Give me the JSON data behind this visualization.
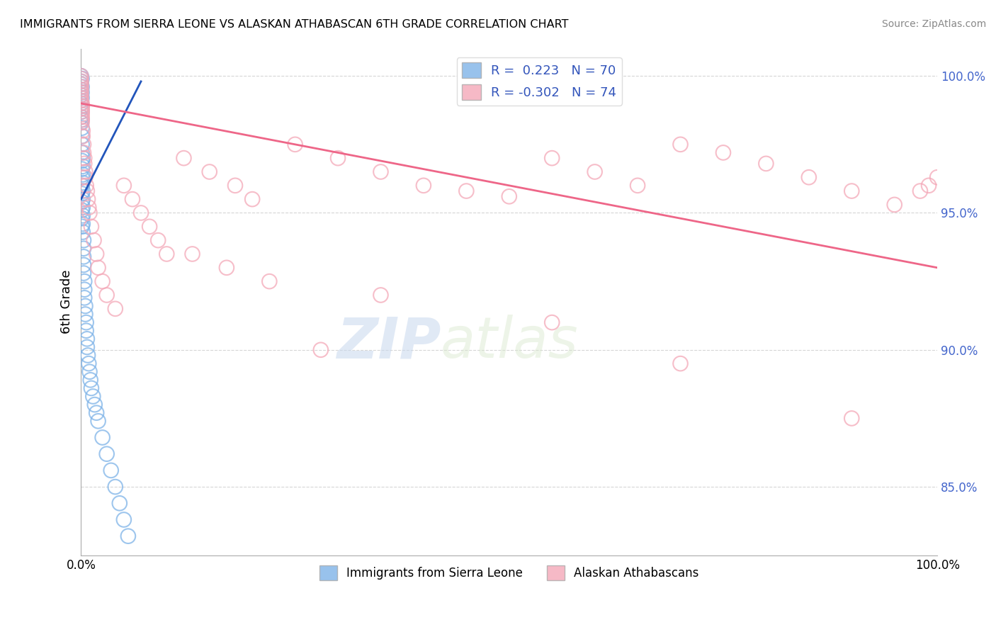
{
  "title": "IMMIGRANTS FROM SIERRA LEONE VS ALASKAN ATHABASCAN 6TH GRADE CORRELATION CHART",
  "source_text": "Source: ZipAtlas.com",
  "ylabel": "6th Grade",
  "xlim": [
    0.0,
    1.0
  ],
  "ylim": [
    0.825,
    1.01
  ],
  "yticks": [
    0.85,
    0.9,
    0.95,
    1.0
  ],
  "ytick_labels": [
    "85.0%",
    "90.0%",
    "95.0%",
    "100.0%"
  ],
  "xticks": [
    0.0,
    1.0
  ],
  "xtick_labels": [
    "0.0%",
    "100.0%"
  ],
  "legend_R_blue": "0.223",
  "legend_N_blue": "70",
  "legend_R_pink": "-0.302",
  "legend_N_pink": "74",
  "blue_color": "#7EB3E8",
  "pink_color": "#F4A8B8",
  "blue_line_color": "#2255BB",
  "pink_line_color": "#EE6688",
  "watermark_zip": "ZIP",
  "watermark_atlas": "atlas",
  "blue_x": [
    0.0,
    0.0,
    0.0,
    0.0,
    0.0,
    0.0,
    0.0,
    0.0,
    0.0,
    0.0,
    0.001,
    0.001,
    0.001,
    0.001,
    0.001,
    0.001,
    0.001,
    0.001,
    0.001,
    0.001,
    0.001,
    0.001,
    0.001,
    0.001,
    0.001,
    0.001,
    0.001,
    0.001,
    0.001,
    0.001,
    0.002,
    0.002,
    0.002,
    0.002,
    0.002,
    0.002,
    0.002,
    0.002,
    0.002,
    0.002,
    0.003,
    0.003,
    0.003,
    0.003,
    0.003,
    0.004,
    0.004,
    0.004,
    0.005,
    0.005,
    0.006,
    0.006,
    0.007,
    0.007,
    0.008,
    0.009,
    0.01,
    0.011,
    0.012,
    0.014,
    0.016,
    0.018,
    0.02,
    0.025,
    0.03,
    0.035,
    0.04,
    0.045,
    0.05,
    0.055
  ],
  "blue_y": [
    0.99,
    0.995,
    0.998,
    1.0,
    0.988,
    0.985,
    0.993,
    0.997,
    0.983,
    0.991,
    0.999,
    0.996,
    0.994,
    0.992,
    0.989,
    0.987,
    0.984,
    0.981,
    0.978,
    0.975,
    0.972,
    0.969,
    0.966,
    0.963,
    0.96,
    0.957,
    0.954,
    0.951,
    0.948,
    0.945,
    0.97,
    0.967,
    0.964,
    0.961,
    0.958,
    0.955,
    0.952,
    0.949,
    0.946,
    0.943,
    0.94,
    0.937,
    0.934,
    0.931,
    0.928,
    0.925,
    0.922,
    0.919,
    0.916,
    0.913,
    0.91,
    0.907,
    0.904,
    0.901,
    0.898,
    0.895,
    0.892,
    0.889,
    0.886,
    0.883,
    0.88,
    0.877,
    0.874,
    0.868,
    0.862,
    0.856,
    0.85,
    0.844,
    0.838,
    0.832
  ],
  "pink_x": [
    0.0,
    0.0,
    0.0,
    0.0,
    0.0,
    0.0,
    0.0,
    0.0,
    0.0,
    0.0,
    0.001,
    0.001,
    0.001,
    0.001,
    0.001,
    0.001,
    0.001,
    0.001,
    0.002,
    0.002,
    0.003,
    0.003,
    0.004,
    0.004,
    0.005,
    0.005,
    0.006,
    0.007,
    0.008,
    0.009,
    0.01,
    0.012,
    0.015,
    0.018,
    0.02,
    0.025,
    0.03,
    0.04,
    0.05,
    0.06,
    0.07,
    0.08,
    0.09,
    0.1,
    0.12,
    0.15,
    0.18,
    0.2,
    0.25,
    0.3,
    0.35,
    0.4,
    0.45,
    0.5,
    0.55,
    0.6,
    0.65,
    0.7,
    0.75,
    0.8,
    0.85,
    0.9,
    0.95,
    0.98,
    0.99,
    1.0,
    0.35,
    0.55,
    0.7,
    0.9,
    0.13,
    0.17,
    0.22,
    0.28
  ],
  "pink_y": [
    1.0,
    0.999,
    0.998,
    0.997,
    0.996,
    0.995,
    0.994,
    0.993,
    0.992,
    0.991,
    0.99,
    0.989,
    0.988,
    0.987,
    0.986,
    0.985,
    0.984,
    0.983,
    0.98,
    0.978,
    0.975,
    0.972,
    0.97,
    0.968,
    0.965,
    0.963,
    0.96,
    0.958,
    0.955,
    0.952,
    0.95,
    0.945,
    0.94,
    0.935,
    0.93,
    0.925,
    0.92,
    0.915,
    0.96,
    0.955,
    0.95,
    0.945,
    0.94,
    0.935,
    0.97,
    0.965,
    0.96,
    0.955,
    0.975,
    0.97,
    0.965,
    0.96,
    0.958,
    0.956,
    0.97,
    0.965,
    0.96,
    0.975,
    0.972,
    0.968,
    0.963,
    0.958,
    0.953,
    0.958,
    0.96,
    0.963,
    0.92,
    0.91,
    0.895,
    0.875,
    0.935,
    0.93,
    0.925,
    0.9
  ],
  "blue_line_x0": 0.0,
  "blue_line_x1": 0.07,
  "blue_line_y0": 0.955,
  "blue_line_y1": 0.998,
  "pink_line_x0": 0.0,
  "pink_line_x1": 1.0,
  "pink_line_y0": 0.99,
  "pink_line_y1": 0.93
}
